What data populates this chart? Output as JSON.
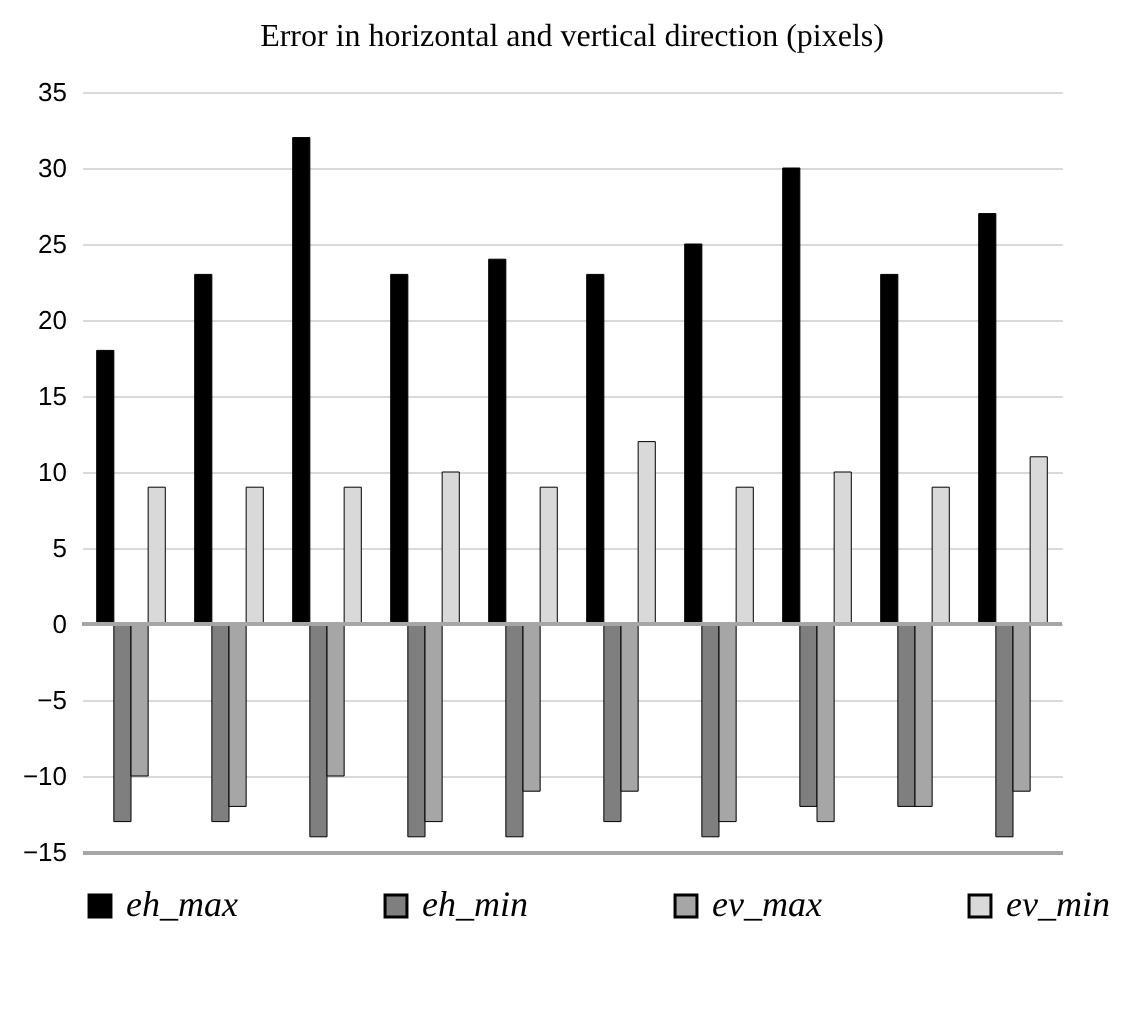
{
  "chart_data": {
    "type": "bar",
    "title": "Error in horizontal and vertical direction (pixels)",
    "categories": [
      null,
      null,
      null,
      null,
      null,
      null,
      null,
      null,
      null,
      null
    ],
    "series": [
      {
        "name": "eh_max",
        "color": "#000000",
        "values": [
          18,
          23,
          32,
          23,
          24,
          23,
          25,
          30,
          23,
          27
        ]
      },
      {
        "name": "eh_min",
        "color": "#7f7f7f",
        "values": [
          -13,
          -13,
          -14,
          -14,
          -14,
          -13,
          -14,
          -12,
          -12,
          -14
        ]
      },
      {
        "name": "ev_max",
        "color": "#a6a6a6",
        "values": [
          -10,
          -12,
          -10,
          -13,
          -11,
          -11,
          -13,
          -13,
          -12,
          -11
        ]
      },
      {
        "name": "ev_min",
        "color": "#d9d9d9",
        "values": [
          9,
          9,
          9,
          10,
          9,
          12,
          9,
          10,
          9,
          11
        ]
      }
    ],
    "ylim": [
      -15,
      35
    ],
    "yticks": [
      -15,
      -10,
      -5,
      0,
      5,
      10,
      15,
      20,
      25,
      30,
      35
    ],
    "grid": "y",
    "legend": "bottom",
    "tick_labels": "y"
  }
}
